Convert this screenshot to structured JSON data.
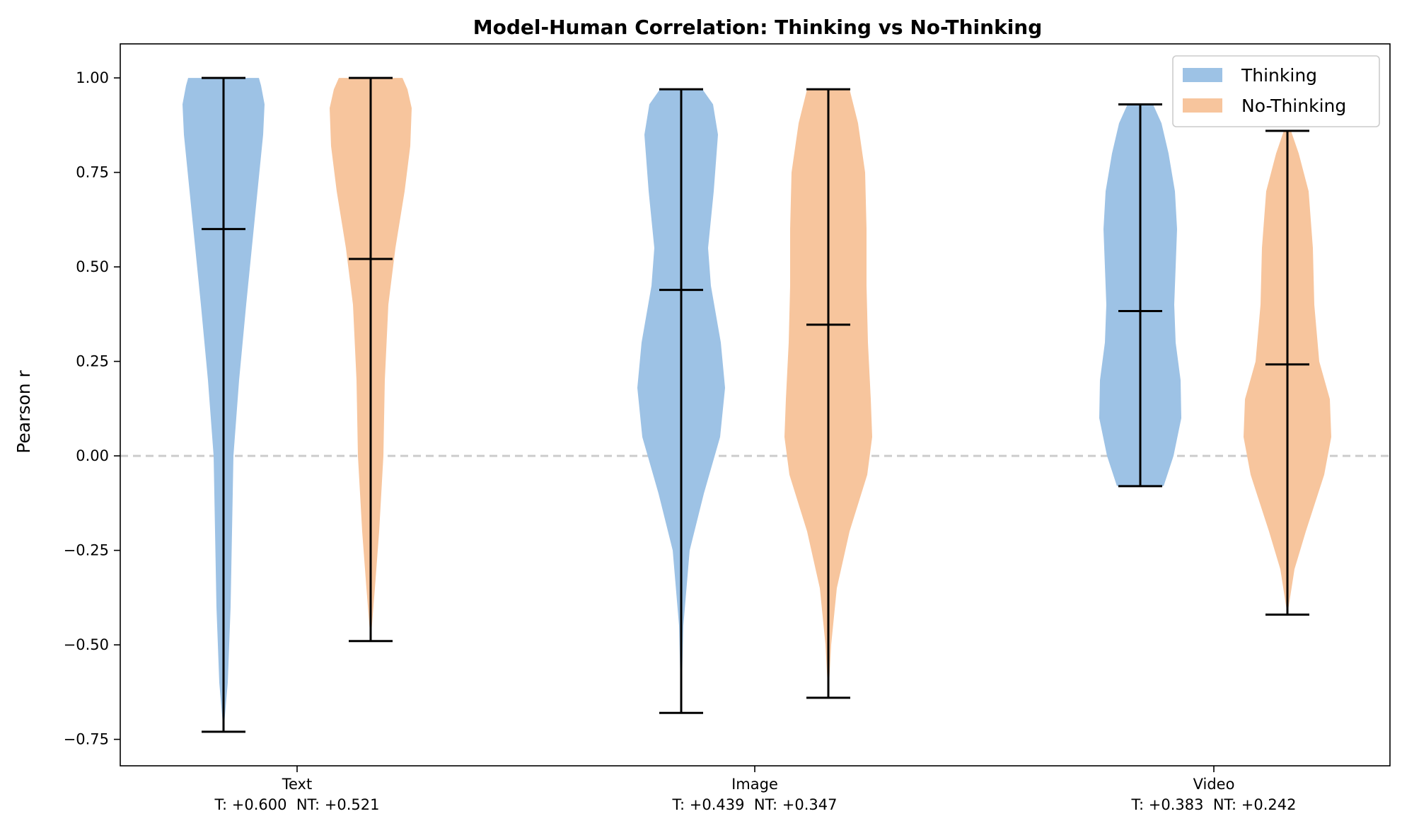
{
  "chart_data": {
    "type": "violin",
    "title": "Model-Human Correlation: Thinking vs No-Thinking",
    "xlabel": "",
    "ylabel": "Pearson r",
    "ylim": [
      -0.82,
      1.09
    ],
    "yticks": [
      1.0,
      0.75,
      0.5,
      0.25,
      0.0,
      -0.25,
      -0.5,
      -0.75
    ],
    "ytick_labels": [
      "1.00",
      "0.75",
      "0.50",
      "0.25",
      "0.00",
      "−0.25",
      "−0.50",
      "−0.75"
    ],
    "reference_line": {
      "y": 0.0,
      "style": "dashed",
      "color": "#cccccc"
    },
    "legend_position": "top-right",
    "categories": [
      {
        "name": "Text",
        "summary": "T: +0.600  NT: +0.521"
      },
      {
        "name": "Image",
        "summary": "T: +0.439  NT: +0.347"
      },
      {
        "name": "Video",
        "summary": "T: +0.383  NT: +0.242"
      }
    ],
    "series": [
      {
        "name": "Thinking",
        "color": "#9dc2e5",
        "violins": [
          {
            "category": "Text",
            "min": -0.73,
            "max": 1.0,
            "mean": 0.6,
            "density": [
              [
                -0.73,
                0.0
              ],
              [
                -0.6,
                0.06
              ],
              [
                -0.4,
                0.1
              ],
              [
                -0.2,
                0.12
              ],
              [
                0.0,
                0.14
              ],
              [
                0.2,
                0.22
              ],
              [
                0.4,
                0.32
              ],
              [
                0.55,
                0.4
              ],
              [
                0.7,
                0.48
              ],
              [
                0.85,
                0.56
              ],
              [
                0.93,
                0.58
              ],
              [
                0.98,
                0.53
              ],
              [
                1.0,
                0.5
              ]
            ]
          },
          {
            "category": "Image",
            "min": -0.68,
            "max": 0.97,
            "mean": 0.439,
            "density": [
              [
                -0.68,
                0.0
              ],
              [
                -0.45,
                0.03
              ],
              [
                -0.25,
                0.12
              ],
              [
                -0.1,
                0.32
              ],
              [
                0.05,
                0.55
              ],
              [
                0.18,
                0.62
              ],
              [
                0.3,
                0.56
              ],
              [
                0.45,
                0.42
              ],
              [
                0.55,
                0.38
              ],
              [
                0.7,
                0.46
              ],
              [
                0.85,
                0.52
              ],
              [
                0.93,
                0.45
              ],
              [
                0.97,
                0.3
              ]
            ]
          },
          {
            "category": "Video",
            "min": -0.08,
            "max": 0.93,
            "mean": 0.383,
            "density": [
              [
                -0.08,
                0.33
              ],
              [
                0.0,
                0.47
              ],
              [
                0.1,
                0.58
              ],
              [
                0.2,
                0.57
              ],
              [
                0.3,
                0.5
              ],
              [
                0.4,
                0.48
              ],
              [
                0.5,
                0.5
              ],
              [
                0.6,
                0.52
              ],
              [
                0.7,
                0.49
              ],
              [
                0.8,
                0.4
              ],
              [
                0.88,
                0.3
              ],
              [
                0.93,
                0.18
              ]
            ]
          }
        ]
      },
      {
        "name": "No-Thinking",
        "color": "#f7c59d",
        "violins": [
          {
            "category": "Text",
            "min": -0.49,
            "max": 1.0,
            "mean": 0.521,
            "density": [
              [
                -0.49,
                0.0
              ],
              [
                -0.35,
                0.06
              ],
              [
                -0.2,
                0.12
              ],
              [
                0.0,
                0.18
              ],
              [
                0.2,
                0.2
              ],
              [
                0.4,
                0.25
              ],
              [
                0.55,
                0.35
              ],
              [
                0.7,
                0.48
              ],
              [
                0.82,
                0.56
              ],
              [
                0.92,
                0.58
              ],
              [
                0.97,
                0.52
              ],
              [
                1.0,
                0.45
              ]
            ]
          },
          {
            "category": "Image",
            "min": -0.64,
            "max": 0.97,
            "mean": 0.347,
            "density": [
              [
                -0.64,
                0.0
              ],
              [
                -0.5,
                0.04
              ],
              [
                -0.35,
                0.12
              ],
              [
                -0.2,
                0.3
              ],
              [
                -0.05,
                0.55
              ],
              [
                0.05,
                0.62
              ],
              [
                0.15,
                0.6
              ],
              [
                0.3,
                0.56
              ],
              [
                0.45,
                0.54
              ],
              [
                0.6,
                0.54
              ],
              [
                0.75,
                0.52
              ],
              [
                0.88,
                0.42
              ],
              [
                0.97,
                0.3
              ]
            ]
          },
          {
            "category": "Video",
            "min": -0.42,
            "max": 0.86,
            "mean": 0.242,
            "density": [
              [
                -0.42,
                0.0
              ],
              [
                -0.3,
                0.1
              ],
              [
                -0.2,
                0.26
              ],
              [
                -0.05,
                0.52
              ],
              [
                0.05,
                0.62
              ],
              [
                0.15,
                0.6
              ],
              [
                0.25,
                0.45
              ],
              [
                0.4,
                0.38
              ],
              [
                0.55,
                0.36
              ],
              [
                0.7,
                0.3
              ],
              [
                0.8,
                0.16
              ],
              [
                0.86,
                0.05
              ]
            ]
          }
        ]
      }
    ]
  }
}
